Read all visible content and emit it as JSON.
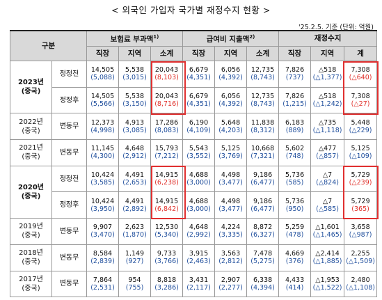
{
  "title": "< 외국인 가입자 국가별 재정수지 현황 >",
  "note": "'25.2.5. 기준 (단위: 억원)",
  "headers": {
    "gubun": "구분",
    "insurance": "보험료 부과액",
    "insurance_sup": "1)",
    "benefit": "급여비 지출액",
    "benefit_sup": "2)",
    "balance": "재정수지",
    "sub": [
      "직장",
      "지역",
      "소계",
      "직장",
      "지역",
      "소계",
      "직장",
      "지역",
      "계"
    ]
  },
  "rows": [
    {
      "year": "2023년",
      "country": "(중국)",
      "label": "정정전",
      "vals": [
        "14,505",
        "5,538",
        "20,043",
        "6,679",
        "6,056",
        "12,735",
        "7,826",
        "△518",
        "7,308"
      ],
      "paren": [
        "(5,088)",
        "(3,015)",
        "(8,103)",
        "(4,351)",
        "(4,392)",
        "(8,743)",
        "(737)",
        "(△1,377)",
        "(△640)"
      ]
    },
    {
      "label": "정정후",
      "vals": [
        "14,505",
        "5,538",
        "20,043",
        "6,679",
        "6,056",
        "12,735",
        "7,826",
        "△518",
        "7,308"
      ],
      "paren": [
        "(5,566)",
        "(3,150)",
        "(8,716)",
        "(4,351)",
        "(4,392)",
        "(8,743)",
        "(1,215)",
        "(△1,242)",
        "(△27)"
      ]
    },
    {
      "year": "2022년",
      "country": "(중국)",
      "label": "변동무",
      "vals": [
        "12,373",
        "4,913",
        "17,286",
        "6,190",
        "5,648",
        "11,838",
        "6,183",
        "△735",
        "5,448"
      ],
      "paren": [
        "(4,998)",
        "(3,085)",
        "(8,083)",
        "(4,109)",
        "(4,203)",
        "(8,312)",
        "(889)",
        "(△1,118)",
        "(△229)"
      ]
    },
    {
      "year": "2021년",
      "country": "(중국)",
      "label": "변동무",
      "vals": [
        "11,145",
        "4,648",
        "15,793",
        "5,543",
        "5,125",
        "10,668",
        "5,602",
        "△477",
        "5,125"
      ],
      "paren": [
        "(4,300)",
        "(2,912)",
        "(7,212)",
        "(3,552)",
        "(3,769)",
        "(7,321)",
        "(748)",
        "(△857)",
        "(△109)"
      ]
    },
    {
      "year": "2020년",
      "country": "(중국)",
      "label": "정정전",
      "vals": [
        "10,424",
        "4,491",
        "14,915",
        "4,688",
        "4,498",
        "9,186",
        "5,736",
        "△7",
        "5,729"
      ],
      "paren": [
        "(3,585)",
        "(2,653)",
        "(6,238)",
        "(3,000)",
        "(3,477)",
        "(6,477)",
        "(585)",
        "(△824)",
        "(△239)"
      ]
    },
    {
      "label": "정정후",
      "vals": [
        "10,424",
        "4,491",
        "14,915",
        "4,688",
        "4,498",
        "9,186",
        "5,736",
        "△7",
        "5,729"
      ],
      "paren": [
        "(3,950)",
        "(2,892)",
        "(6,842)",
        "(3,000)",
        "(3,477)",
        "(6,477)",
        "(950)",
        "(△585)",
        "(365)"
      ]
    },
    {
      "year": "2019년",
      "country": "(중국)",
      "label": "변동무",
      "vals": [
        "9,907",
        "2,623",
        "12,530",
        "4,648",
        "4,224",
        "8,872",
        "5,259",
        "△1,601",
        "3,658"
      ],
      "paren": [
        "(3,470)",
        "(1,870)",
        "(5,340)",
        "(2,992)",
        "(3,335)",
        "(6,327)",
        "(478)",
        "(△1,465)",
        "(△987)"
      ]
    },
    {
      "year": "2018년",
      "country": "(중국)",
      "label": "변동무",
      "vals": [
        "8,584",
        "1,149",
        "9,733",
        "3,915",
        "3,563",
        "7,478",
        "4,669",
        "△2,414",
        "2,255"
      ],
      "paren": [
        "(2,839)",
        "(927)",
        "(3,766)",
        "(2,463)",
        "(2,812)",
        "(5,275)",
        "(376)",
        "(△1,885)",
        "(△1,509)"
      ]
    },
    {
      "year": "2017년",
      "country": "(중국)",
      "label": "변동무",
      "vals": [
        "7,864",
        "954",
        "8,818",
        "3,431",
        "2,907",
        "6,338",
        "4,433",
        "△1,953",
        "2,480"
      ],
      "paren": [
        "(2,531)",
        "(755)",
        "(3,286)",
        "(2,117)",
        "(2,277)",
        "(4,394)",
        "(414)",
        "(△1,522)",
        "(△1,108)"
      ]
    }
  ]
}
